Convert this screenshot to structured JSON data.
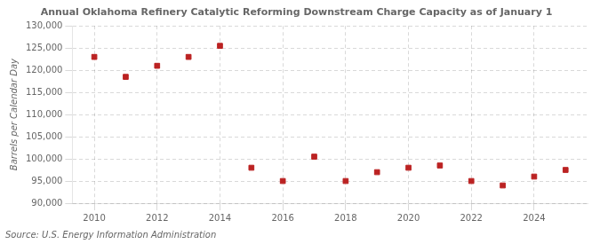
{
  "chart_data": {
    "type": "scatter",
    "title": "Annual Oklahoma Refinery Catalytic Reforming Downstream Charge Capacity as of January 1",
    "ylabel": "Barrels per Calendar Day",
    "source": "Source: U.S. Energy Information Administration",
    "x": [
      2010,
      2011,
      2012,
      2013,
      2014,
      2015,
      2016,
      2017,
      2018,
      2019,
      2020,
      2021,
      2022,
      2023,
      2024,
      2025
    ],
    "values": [
      123000,
      118500,
      121000,
      123000,
      125500,
      98000,
      95000,
      100500,
      95000,
      97000,
      98000,
      98500,
      95000,
      94000,
      96000,
      97500
    ],
    "color": "#bb2222",
    "marker": "square",
    "xlim": [
      2009.3,
      2025.7
    ],
    "xticks": [
      2010,
      2012,
      2014,
      2016,
      2018,
      2020,
      2022,
      2024
    ],
    "ylim": [
      90000,
      130000
    ],
    "yticks": [
      {
        "value": 90000,
        "label": "90,000"
      },
      {
        "value": 95000,
        "label": "95,000"
      },
      {
        "value": 100000,
        "label": "100,000"
      },
      {
        "value": 105000,
        "label": "105,000"
      },
      {
        "value": 110000,
        "label": "110,000"
      },
      {
        "value": 115000,
        "label": "115,000"
      },
      {
        "value": 120000,
        "label": "120,000"
      },
      {
        "value": 125000,
        "label": "125,000"
      },
      {
        "value": 130000,
        "label": "130,000"
      }
    ],
    "grid": true
  }
}
